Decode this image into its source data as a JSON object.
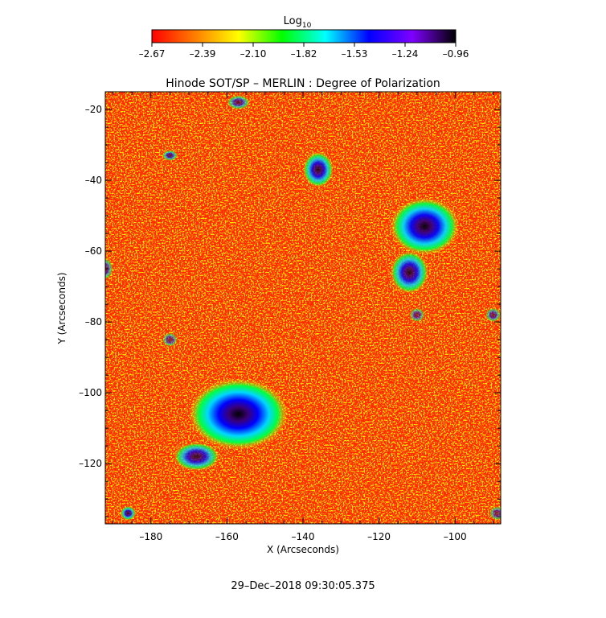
{
  "chart_data": {
    "type": "heatmap",
    "title": "Hinode SOT/SP – MERLIN : Degree of Polarization",
    "xlabel": "X (Arcseconds)",
    "ylabel": "Y (Arcseconds)",
    "xlim": [
      -192,
      -88
    ],
    "ylim": [
      -137,
      -15
    ],
    "xticks": [
      -180,
      -160,
      -140,
      -120,
      -100
    ],
    "yticks": [
      -20,
      -40,
      -60,
      -80,
      -100,
      -120
    ],
    "xtick_labels": [
      "–180",
      "–160",
      "–140",
      "–120",
      "–100"
    ],
    "ytick_labels": [
      "–20",
      "–40",
      "–60",
      "–80",
      "–100",
      "–120"
    ],
    "colorbar": {
      "title_base": "Log",
      "title_sub": "10",
      "range": [
        -2.67,
        -0.96
      ],
      "tick_labels": [
        "–2.67",
        "–2.39",
        "–2.10",
        "–1.82",
        "–1.53",
        "–1.24",
        "–0.96"
      ],
      "colormap": [
        "#ff0000",
        "#ff7f00",
        "#ffff00",
        "#00ff00",
        "#00ffff",
        "#0000ff",
        "#7f00ff",
        "#000000"
      ]
    },
    "background_color": "#ff2a00",
    "regions": [
      {
        "x": -157,
        "y": -106,
        "rx": 13,
        "ry": 10,
        "level": 1.0
      },
      {
        "x": -168,
        "y": -118,
        "rx": 6,
        "ry": 4,
        "level": 0.8
      },
      {
        "x": -108,
        "y": -53,
        "rx": 9,
        "ry": 8,
        "level": 0.95
      },
      {
        "x": -112,
        "y": -66,
        "rx": 5,
        "ry": 6,
        "level": 0.85
      },
      {
        "x": -136,
        "y": -37,
        "rx": 4,
        "ry": 5,
        "level": 0.85
      },
      {
        "x": -186,
        "y": -134,
        "rx": 2,
        "ry": 2,
        "level": 0.8
      },
      {
        "x": -175,
        "y": -33,
        "rx": 2,
        "ry": 1.5,
        "level": 0.7
      },
      {
        "x": -157,
        "y": -18,
        "rx": 3,
        "ry": 2,
        "level": 0.65
      },
      {
        "x": -192,
        "y": -65,
        "rx": 2,
        "ry": 3,
        "level": 0.6
      },
      {
        "x": -90,
        "y": -78,
        "rx": 2,
        "ry": 2,
        "level": 0.6
      },
      {
        "x": -175,
        "y": -85,
        "rx": 2,
        "ry": 2,
        "level": 0.55
      },
      {
        "x": -110,
        "y": -78,
        "rx": 2,
        "ry": 2,
        "level": 0.55
      },
      {
        "x": -89,
        "y": -134,
        "rx": 2,
        "ry": 2,
        "level": 0.55
      }
    ],
    "footer": "29–Dec–2018 09:30:05.375"
  }
}
